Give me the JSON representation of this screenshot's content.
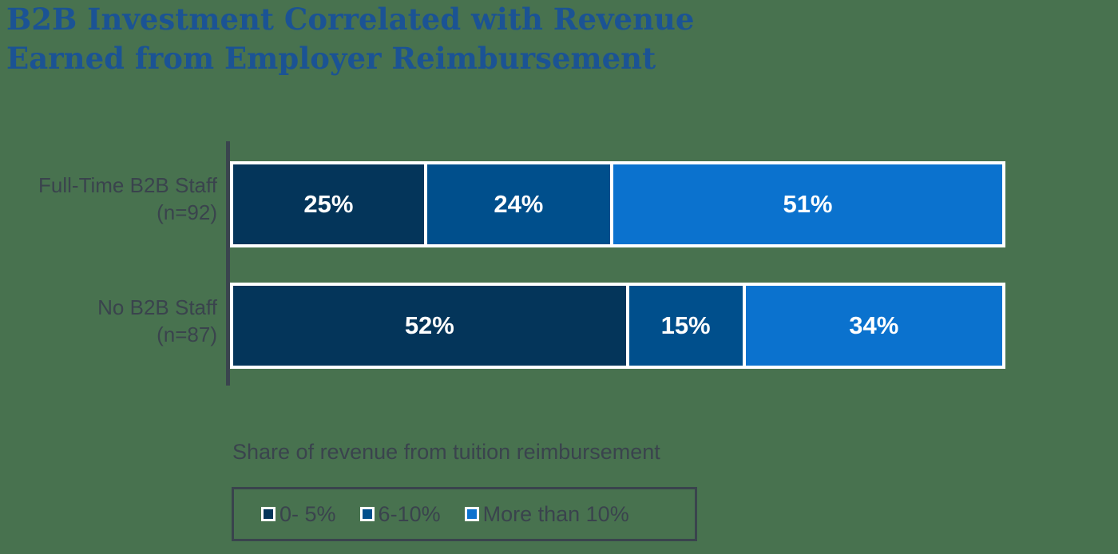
{
  "title": {
    "line1": "B2B Investment Correlated with Revenue",
    "line2": "Earned from Employer Reimbursement"
  },
  "chart_data": {
    "type": "bar",
    "orientation": "horizontal",
    "stacked": true,
    "unit": "%",
    "xlim": [
      0,
      100
    ],
    "grid": false,
    "categories": [
      "Full-Time B2B Staff",
      "No B2B Staff"
    ],
    "category_sublabels": [
      "(n=92)",
      "(n=87)"
    ],
    "series": [
      {
        "name": "0- 5%",
        "color": "#04355A",
        "values": [
          25,
          52
        ]
      },
      {
        "name": "6-10%",
        "color": "#004F8C",
        "values": [
          24,
          15
        ]
      },
      {
        "name": "More than 10%",
        "color": "#0B72CE",
        "values": [
          51,
          34
        ]
      }
    ],
    "legend_title": "Share of revenue from tuition reimbursement",
    "legend_position": "bottom"
  },
  "colors": {
    "background": "#48724F",
    "title_text": "#1B5394",
    "label_text": "#3A434D",
    "bar_value_text": "#FFFFFF",
    "axis_line": "#3A444E",
    "legend_border": "#3A434D"
  }
}
